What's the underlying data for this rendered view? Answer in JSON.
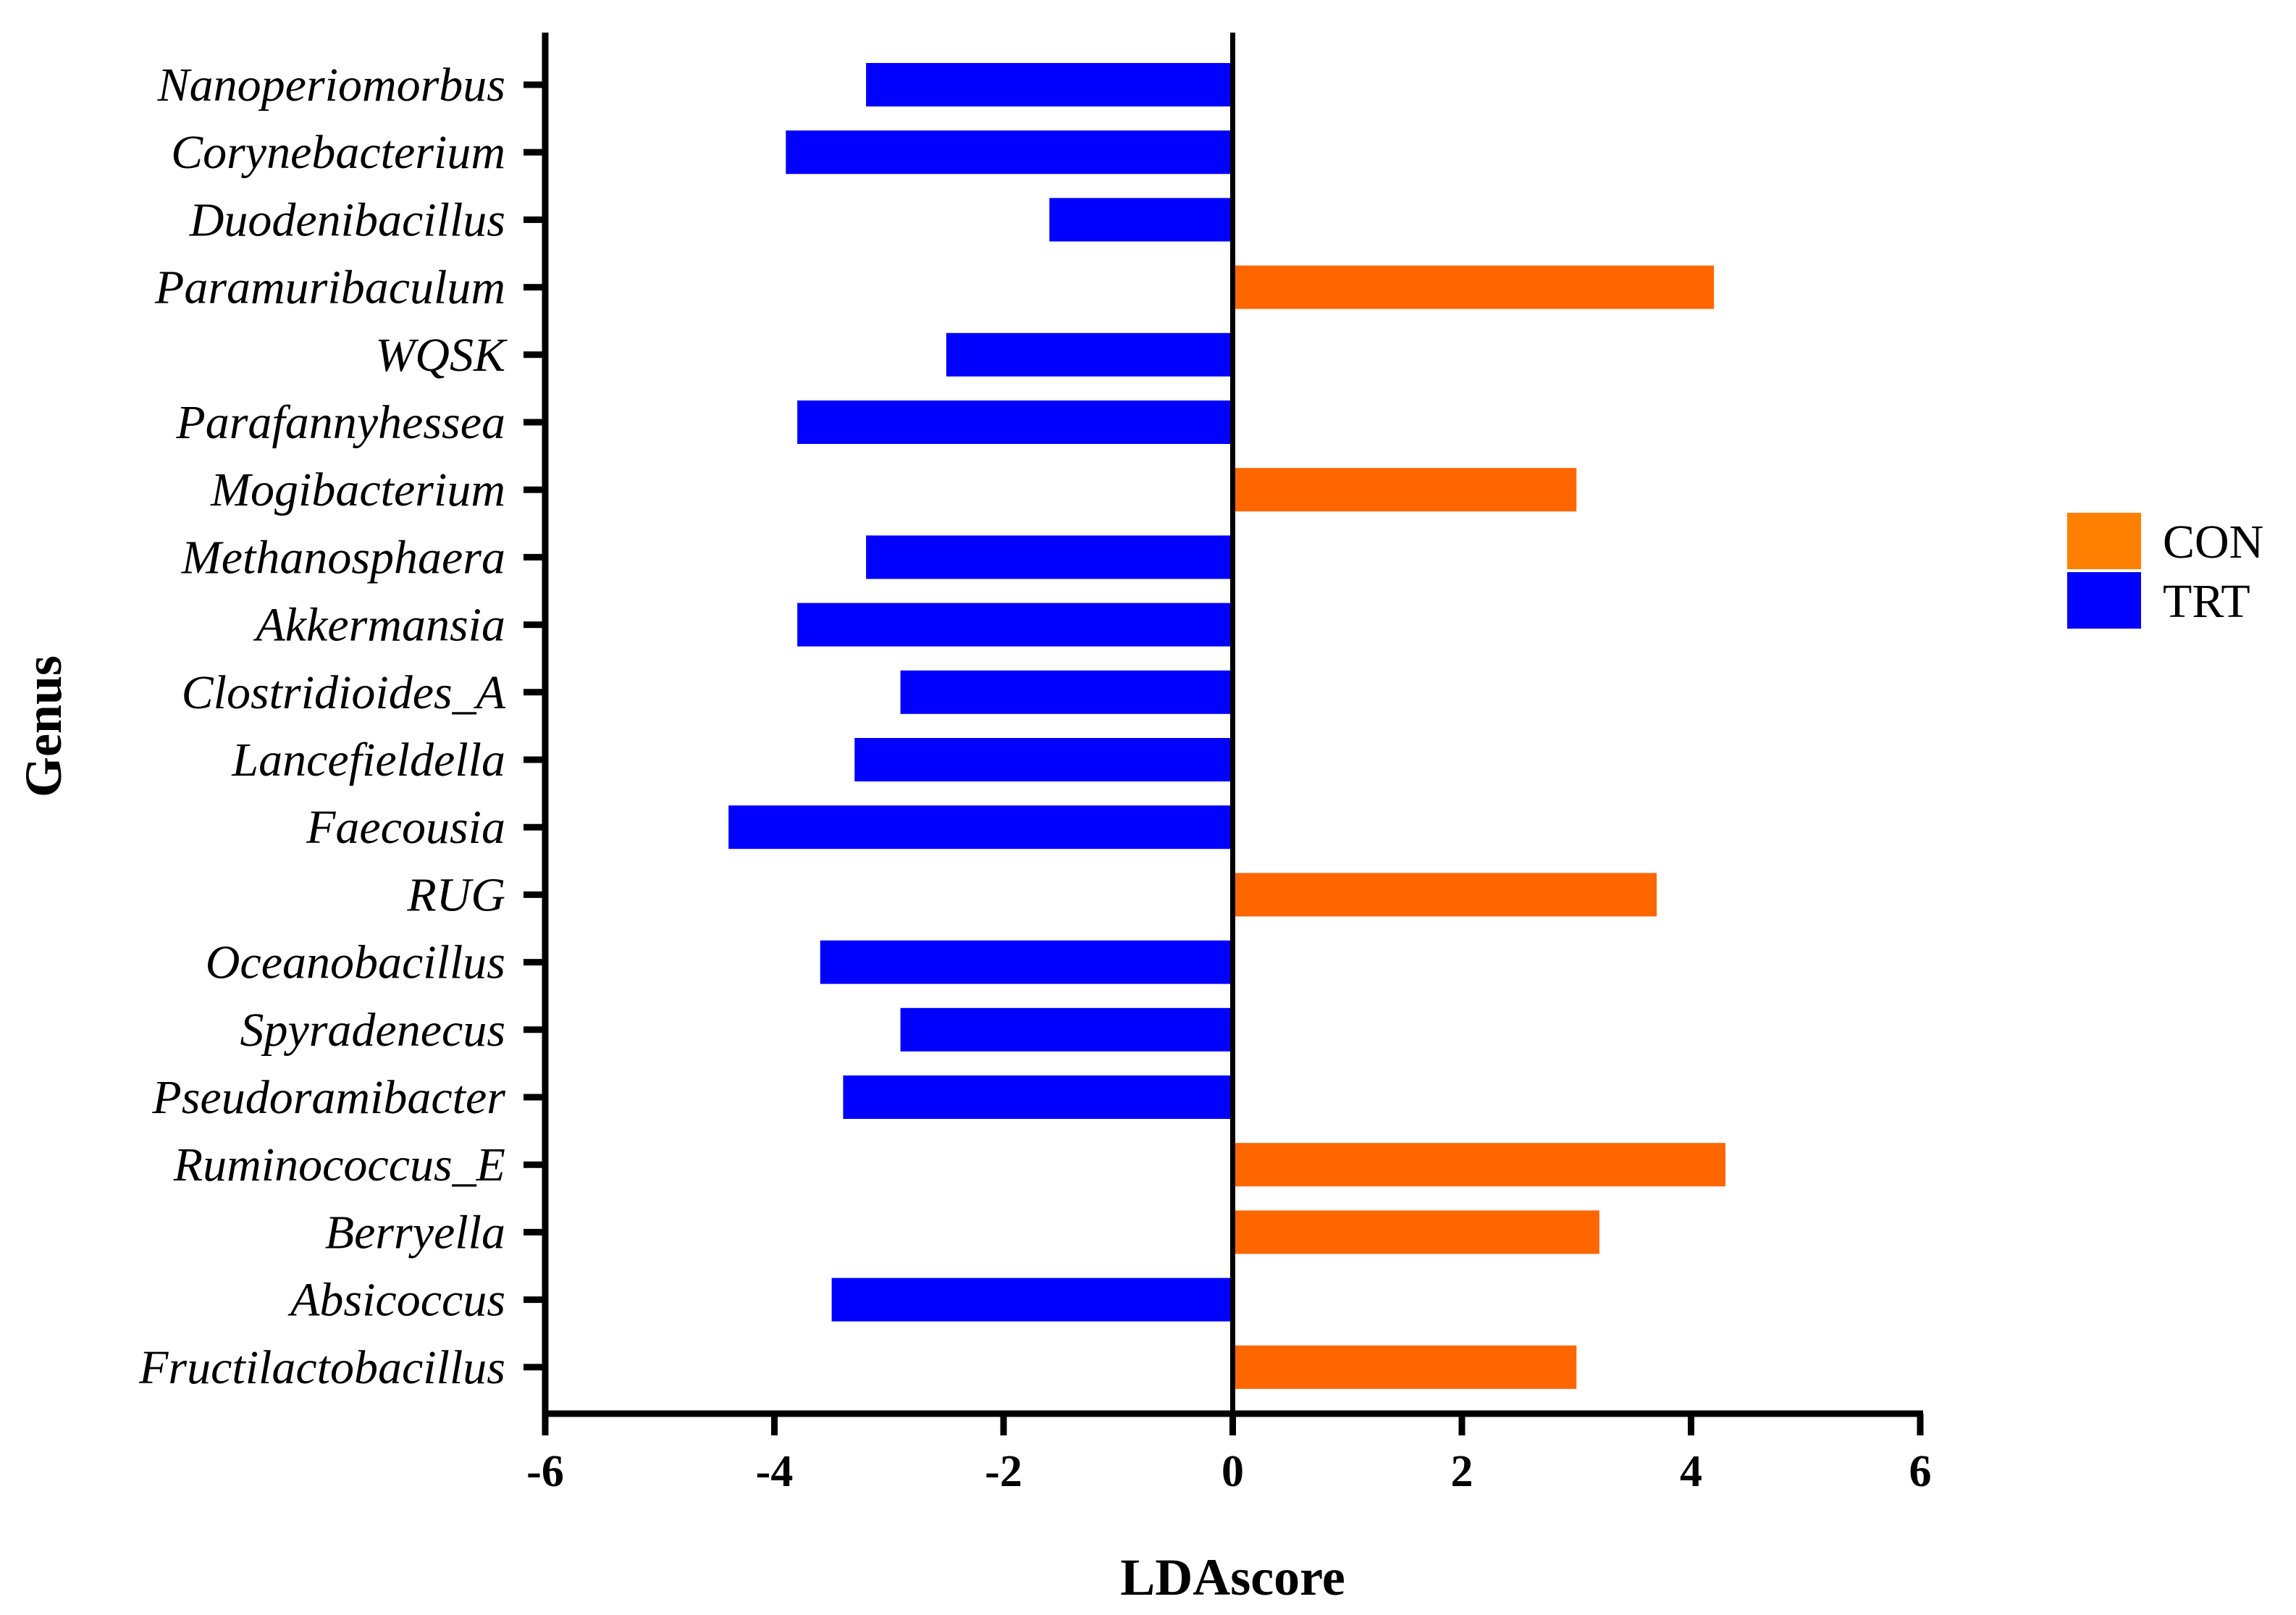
{
  "chart_data": {
    "type": "bar",
    "orientation": "horizontal",
    "xlabel": "LDAscore",
    "ylabel": "Genus",
    "xlim": [
      -6,
      6
    ],
    "xticks": [
      -6,
      -4,
      -2,
      0,
      2,
      4,
      6
    ],
    "xtick_labels": [
      "-6",
      "-4",
      "-2",
      "0",
      "2",
      "4",
      "6"
    ],
    "legend_position": "right",
    "groups": [
      {
        "name": "CON",
        "color": "#ff6600",
        "legend_color": "#ff8000"
      },
      {
        "name": "TRT",
        "color": "#0000ff",
        "legend_color": "#0000ff"
      }
    ],
    "categories": [
      "Nanoperiomorbus",
      "Corynebacterium",
      "Duodenibacillus",
      "Paramuribaculum",
      "WQSK",
      "Parafannyhessea",
      "Mogibacterium",
      "Methanosphaera",
      "Akkermansia",
      "Clostridioides_A",
      "Lancefieldella",
      "Faecousia",
      "RUG",
      "Oceanobacillus",
      "Spyradenecus",
      "Pseudoramibacter",
      "Ruminococcus_E",
      "Berryella",
      "Absicoccus",
      "Fructilactobacillus"
    ],
    "values": [
      -3.2,
      -3.9,
      -1.6,
      4.2,
      -2.5,
      -3.8,
      3.0,
      -3.2,
      -3.8,
      -2.9,
      -3.3,
      -4.4,
      3.7,
      -3.6,
      -2.9,
      -3.4,
      4.3,
      3.2,
      -3.5,
      3.0
    ],
    "group_of_bar": [
      "TRT",
      "TRT",
      "TRT",
      "CON",
      "TRT",
      "TRT",
      "CON",
      "TRT",
      "TRT",
      "TRT",
      "TRT",
      "TRT",
      "CON",
      "TRT",
      "TRT",
      "TRT",
      "CON",
      "CON",
      "TRT",
      "CON"
    ]
  }
}
